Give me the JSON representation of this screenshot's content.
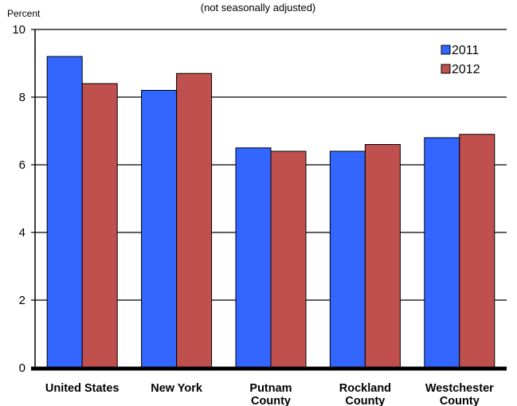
{
  "chart_data": {
    "type": "bar",
    "title": "",
    "subtitle": "(not seasonally adjusted)",
    "ylabel": "Percent",
    "xlabel": "",
    "ylim": [
      0,
      10
    ],
    "yticks": [
      0,
      2,
      4,
      6,
      8,
      10
    ],
    "grid": true,
    "legend_position": "top-right",
    "categories": [
      [
        "United States"
      ],
      [
        "New York"
      ],
      [
        "Putnam",
        "County"
      ],
      [
        "Rockland",
        "County"
      ],
      [
        "Westchester",
        "County"
      ]
    ],
    "series": [
      {
        "name": "2011",
        "color": "#3366ff",
        "values": [
          9.2,
          8.2,
          6.5,
          6.4,
          6.8
        ]
      },
      {
        "name": "2012",
        "color": "#c0504d",
        "values": [
          8.4,
          8.7,
          6.4,
          6.6,
          6.9
        ]
      }
    ]
  }
}
